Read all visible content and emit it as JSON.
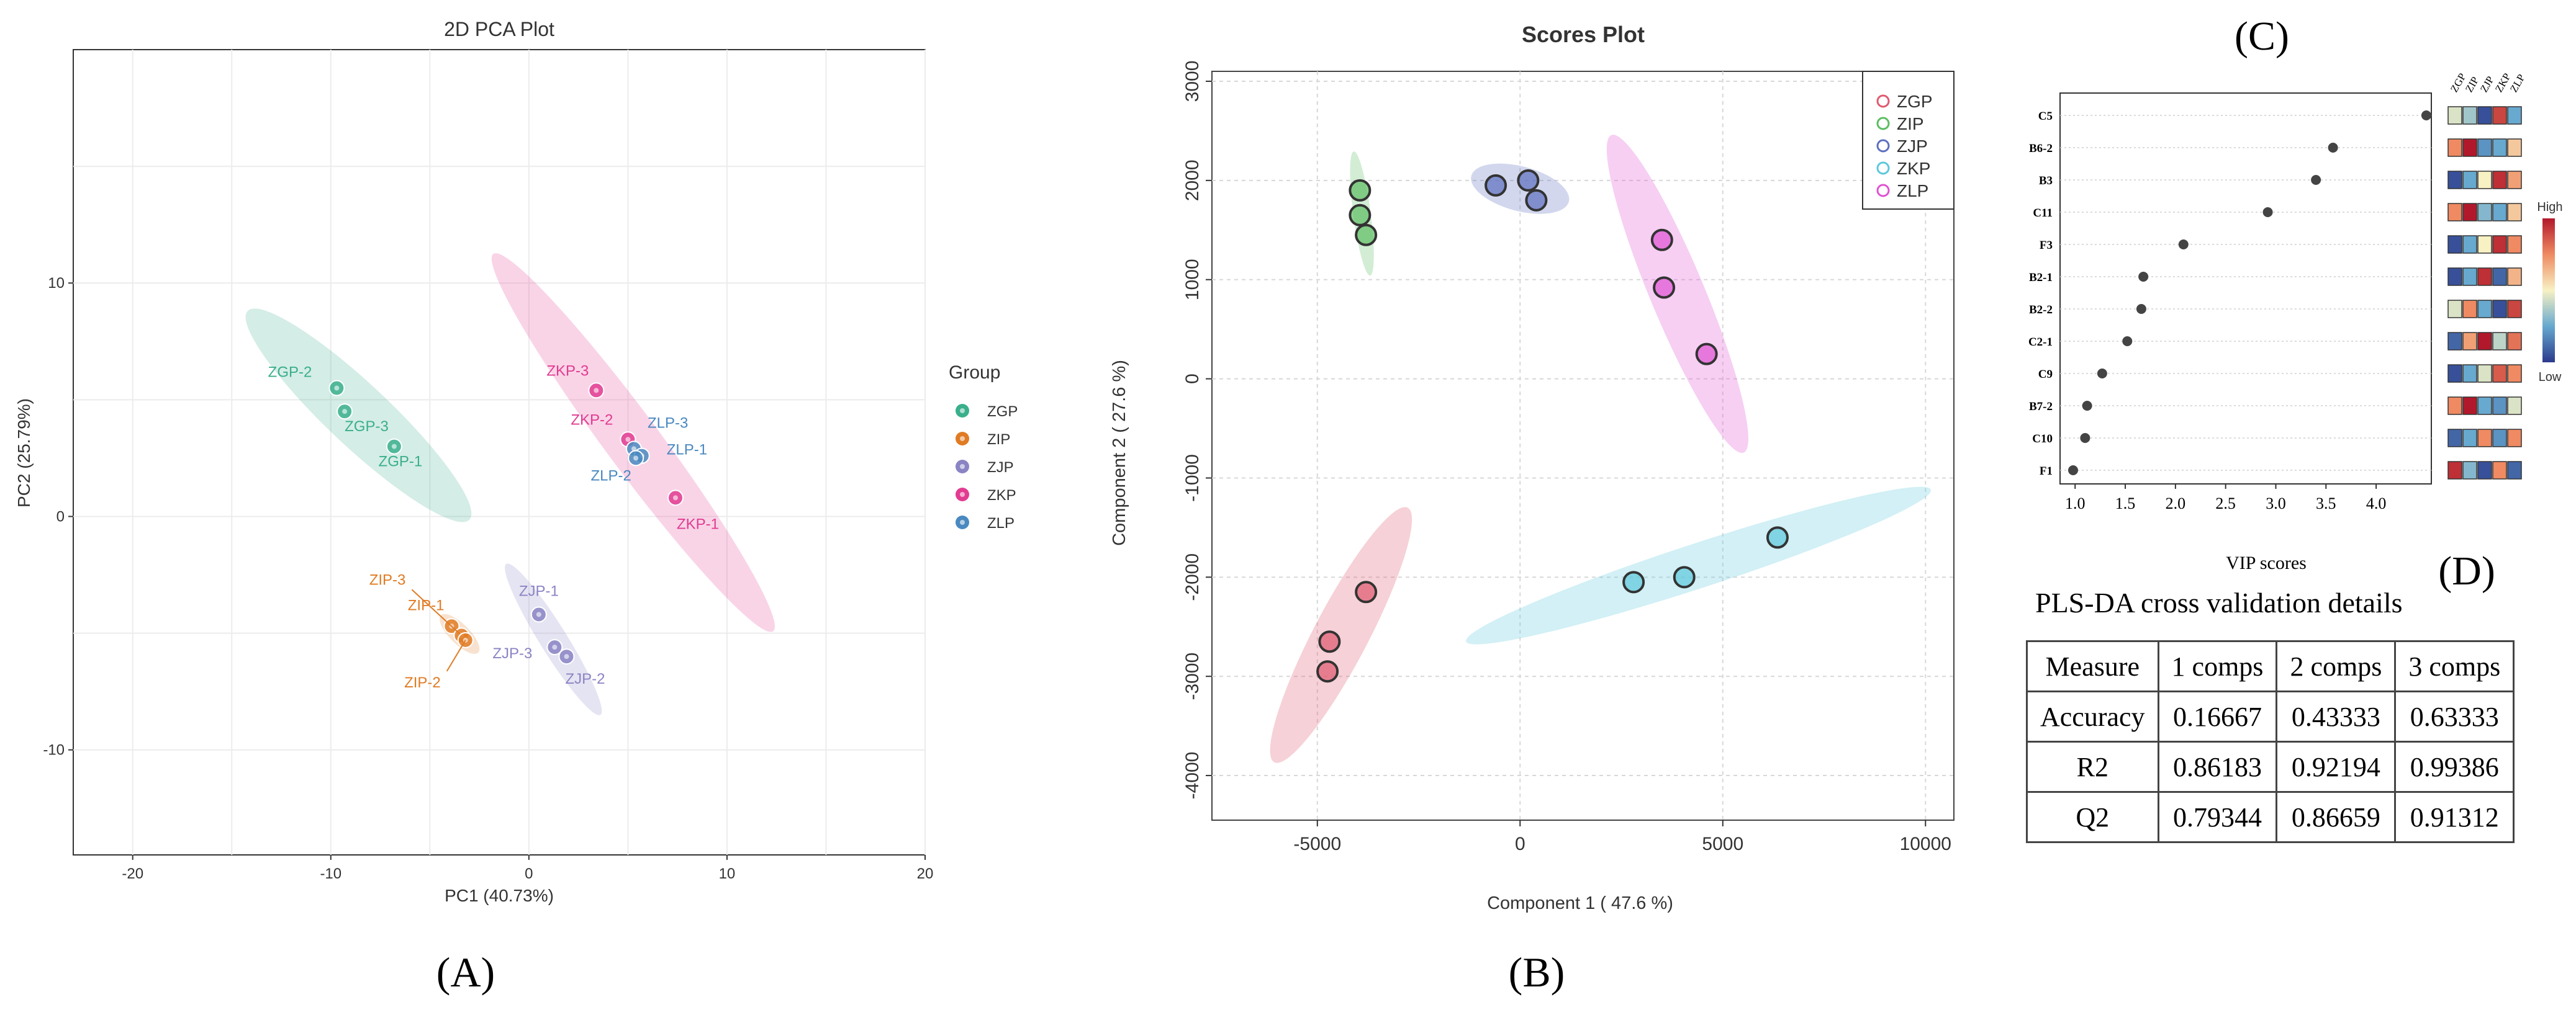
{
  "panels": {
    "A": {
      "letter": "(A)",
      "title": "2D PCA Plot",
      "xlabel": "PC1 (40.73%)",
      "ylabel": "PC2 (25.79%)",
      "xlim": [
        -23,
        20
      ],
      "ylim": [
        -14.5,
        20
      ],
      "xticks": [
        -20,
        -10,
        0,
        10,
        20
      ],
      "yticks": [
        -10,
        0,
        10
      ],
      "legend_title": "Group",
      "legend": [
        {
          "name": "ZGP",
          "color": "#3aaf8c"
        },
        {
          "name": "ZIP",
          "color": "#e07b24"
        },
        {
          "name": "ZJP",
          "color": "#8a84c4"
        },
        {
          "name": "ZKP",
          "color": "#e23b91"
        },
        {
          "name": "ZLP",
          "color": "#4a89c0"
        }
      ]
    },
    "B": {
      "letter": "(B)",
      "title": "Scores Plot",
      "xlabel": "Component 1 ( 47.6 %)",
      "ylabel": "Component 2 ( 27.6 %)",
      "xlim": [
        -7600,
        10700
      ],
      "ylim": [
        -4450,
        3100
      ],
      "xticks": [
        -5000,
        0,
        5000,
        10000
      ],
      "yticks": [
        -4000,
        -3000,
        -2000,
        -1000,
        0,
        1000,
        2000,
        3000
      ],
      "legend": [
        {
          "name": "ZGP",
          "color": "#e05a6f"
        },
        {
          "name": "ZIP",
          "color": "#5cbd63"
        },
        {
          "name": "ZJP",
          "color": "#5d6fc0"
        },
        {
          "name": "ZKP",
          "color": "#5cc8dc"
        },
        {
          "name": "ZLP",
          "color": "#e053d3"
        }
      ]
    },
    "C": {
      "letter": "(C)",
      "xlabel": "VIP scores",
      "xlim": [
        0.85,
        4.55
      ],
      "xticks": [
        1.0,
        1.5,
        2.0,
        2.5,
        3.0,
        3.5,
        4.0
      ],
      "heat_columns": [
        "ZGP",
        "ZIP",
        "ZJP",
        "ZKP",
        "ZLP"
      ],
      "scale_high": "High",
      "scale_low": "Low"
    },
    "D": {
      "letter": "(D)",
      "title": "PLS-DA cross validation details",
      "headers": [
        "Measure",
        "1 comps",
        "2 comps",
        "3 comps"
      ],
      "rows": [
        [
          "Accuracy",
          "0.16667",
          "0.43333",
          "0.63333"
        ],
        [
          "R2",
          "0.86183",
          "0.92194",
          "0.99386"
        ],
        [
          "Q2",
          "0.79344",
          "0.86659",
          "0.91312"
        ]
      ]
    }
  },
  "chart_data": [
    {
      "type": "scatter",
      "title": "2D PCA Plot",
      "xlabel": "PC1 (40.73%)",
      "ylabel": "PC2 (25.79%)",
      "series": [
        {
          "name": "ZGP",
          "points": [
            {
              "label": "ZGP-2",
              "x": -9.7,
              "y": 5.5
            },
            {
              "label": "ZGP-3",
              "x": -9.3,
              "y": 4.5
            },
            {
              "label": "ZGP-1",
              "x": -6.8,
              "y": 3.0
            }
          ]
        },
        {
          "name": "ZIP",
          "points": [
            {
              "label": "ZIP-1",
              "x": -3.9,
              "y": -4.7
            },
            {
              "label": "ZIP-3",
              "x": -3.4,
              "y": -5.1
            },
            {
              "label": "ZIP-2",
              "x": -3.2,
              "y": -5.3
            }
          ]
        },
        {
          "name": "ZJP",
          "points": [
            {
              "label": "ZJP-1",
              "x": 0.5,
              "y": -4.2
            },
            {
              "label": "ZJP-3",
              "x": 1.3,
              "y": -5.6
            },
            {
              "label": "ZJP-2",
              "x": 1.9,
              "y": -6.0
            }
          ]
        },
        {
          "name": "ZKP",
          "points": [
            {
              "label": "ZKP-3",
              "x": 3.4,
              "y": 5.4
            },
            {
              "label": "ZKP-2",
              "x": 5.0,
              "y": 3.3
            },
            {
              "label": "ZKP-1",
              "x": 7.4,
              "y": 0.8
            }
          ]
        },
        {
          "name": "ZLP",
          "points": [
            {
              "label": "ZLP-3",
              "x": 5.3,
              "y": 2.9
            },
            {
              "label": "ZLP-1",
              "x": 5.7,
              "y": 2.6
            },
            {
              "label": "ZLP-2",
              "x": 5.4,
              "y": 2.5
            }
          ]
        }
      ]
    },
    {
      "type": "scatter",
      "title": "Scores Plot",
      "xlabel": "Component 1 ( 47.6 %)",
      "ylabel": "Component 2 ( 27.6 %)",
      "series": [
        {
          "name": "ZGP",
          "points": [
            {
              "x": -3800,
              "y": -2150
            },
            {
              "x": -4700,
              "y": -2650
            },
            {
              "x": -4750,
              "y": -2950
            }
          ]
        },
        {
          "name": "ZIP",
          "points": [
            {
              "x": -3950,
              "y": 1900
            },
            {
              "x": -3950,
              "y": 1650
            },
            {
              "x": -3800,
              "y": 1450
            }
          ]
        },
        {
          "name": "ZJP",
          "points": [
            {
              "x": -600,
              "y": 1950
            },
            {
              "x": 200,
              "y": 2000
            },
            {
              "x": 400,
              "y": 1800
            }
          ]
        },
        {
          "name": "ZKP",
          "points": [
            {
              "x": 2800,
              "y": -2050
            },
            {
              "x": 4050,
              "y": -2000
            },
            {
              "x": 6350,
              "y": -1600
            }
          ]
        },
        {
          "name": "ZLP",
          "points": [
            {
              "x": 3500,
              "y": 1400
            },
            {
              "x": 3550,
              "y": 920
            },
            {
              "x": 4600,
              "y": 250
            }
          ]
        }
      ]
    },
    {
      "type": "scatter",
      "xlabel": "VIP scores",
      "categories": [
        "C5",
        "B6-2",
        "B3",
        "C11",
        "F3",
        "B2-1",
        "B2-2",
        "C2-1",
        "C9",
        "B7-2",
        "C10",
        "F1"
      ],
      "values": [
        4.5,
        3.57,
        3.4,
        2.92,
        2.08,
        1.68,
        1.66,
        1.52,
        1.27,
        1.12,
        1.1,
        0.98
      ],
      "heatmap_columns": [
        "ZGP",
        "ZIP",
        "ZJP",
        "ZKP",
        "ZLP"
      ],
      "heatmap_levels": [
        [
          0.45,
          0.35,
          0.05,
          0.9,
          0.25
        ],
        [
          0.75,
          1.0,
          0.2,
          0.25,
          0.6
        ],
        [
          0.05,
          0.25,
          0.5,
          0.95,
          0.7
        ],
        [
          0.75,
          1.0,
          0.3,
          0.25,
          0.6
        ],
        [
          0.05,
          0.25,
          0.5,
          0.95,
          0.75
        ],
        [
          0.05,
          0.25,
          0.95,
          0.1,
          0.65
        ],
        [
          0.45,
          0.75,
          0.25,
          0.05,
          0.9
        ],
        [
          0.1,
          0.7,
          1.0,
          0.4,
          0.8
        ],
        [
          0.05,
          0.25,
          0.45,
          0.85,
          0.75
        ],
        [
          0.75,
          1.0,
          0.25,
          0.2,
          0.45
        ],
        [
          0.1,
          0.25,
          0.75,
          0.2,
          0.75
        ],
        [
          0.95,
          0.3,
          0.05,
          0.75,
          0.1
        ]
      ]
    },
    {
      "type": "table",
      "title": "PLS-DA cross validation details",
      "headers": [
        "Measure",
        "1 comps",
        "2 comps",
        "3 comps"
      ],
      "rows": [
        [
          "Accuracy",
          "0.16667",
          "0.43333",
          "0.63333"
        ],
        [
          "R2",
          "0.86183",
          "0.92194",
          "0.99386"
        ],
        [
          "Q2",
          "0.79344",
          "0.86659",
          "0.91312"
        ]
      ]
    }
  ]
}
